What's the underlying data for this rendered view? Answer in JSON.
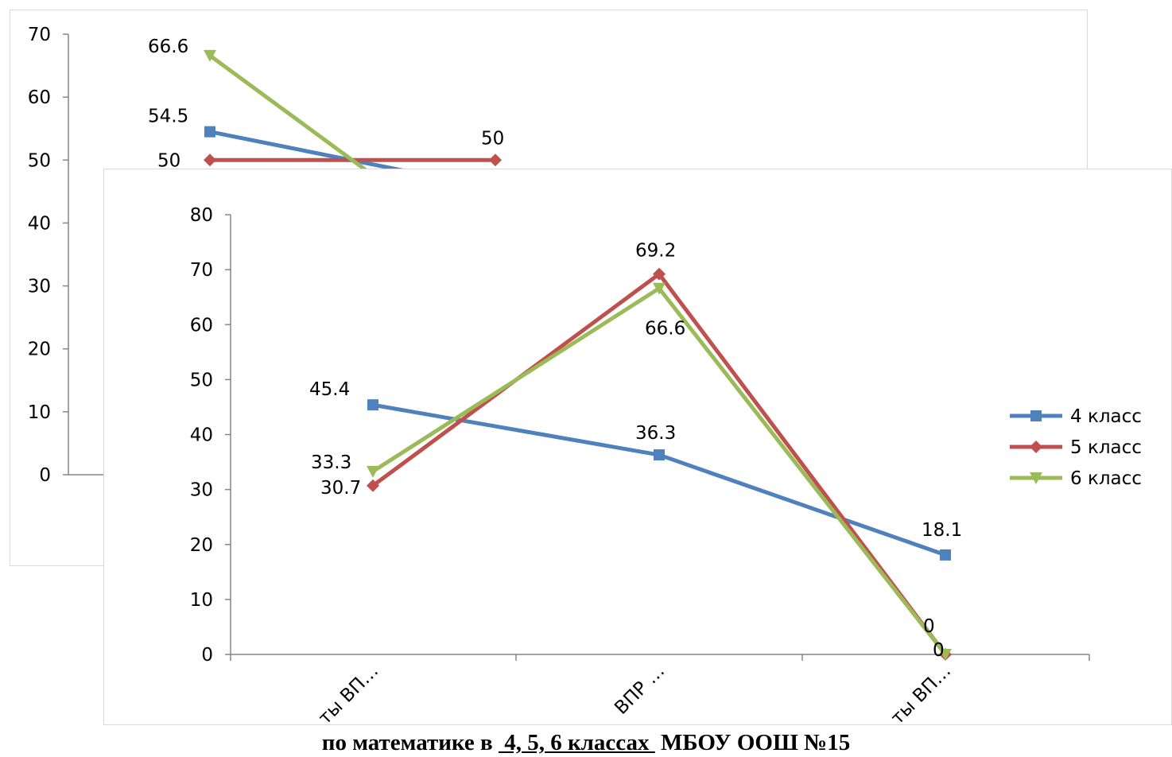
{
  "colors": {
    "s4": "#4f81bd",
    "s5": "#c0504d",
    "s6": "#9bbb59"
  },
  "chart_data": [
    {
      "type": "line",
      "categories": [
        "",
        "",
        ""
      ],
      "ylim": [
        0,
        70
      ],
      "yticks": [
        0,
        10,
        20,
        30,
        40,
        50,
        60,
        70
      ],
      "series": [
        {
          "name": "4 класс",
          "values": [
            54.5,
            45.4,
            null
          ]
        },
        {
          "name": "5 класс",
          "values": [
            50,
            50,
            null
          ]
        },
        {
          "name": "6 класс",
          "values": [
            66.6,
            33.3,
            null
          ]
        }
      ],
      "data_labels": [
        {
          "series": 0,
          "index": 0,
          "text": "54.5"
        },
        {
          "series": 1,
          "index": 0,
          "text": "50"
        },
        {
          "series": 2,
          "index": 0,
          "text": "66.6"
        },
        {
          "series": 1,
          "index": 1,
          "text": "50"
        },
        {
          "series": 0,
          "index": 1,
          "text": "45.4"
        }
      ],
      "legend": "none",
      "grid": false
    },
    {
      "type": "line",
      "categories": [
        "ты ВП…",
        "ВПР …",
        "ты ВП…"
      ],
      "ylim": [
        0,
        80
      ],
      "yticks": [
        0,
        10,
        20,
        30,
        40,
        50,
        60,
        70,
        80
      ],
      "series": [
        {
          "name": "4 класс",
          "values": [
            45.4,
            36.3,
            18.1
          ]
        },
        {
          "name": "5 класс",
          "values": [
            30.7,
            69.2,
            0
          ]
        },
        {
          "name": "6 класс",
          "values": [
            33.3,
            66.6,
            0
          ]
        }
      ],
      "data_labels": [
        {
          "series": 0,
          "index": 0,
          "text": "45.4"
        },
        {
          "series": 0,
          "index": 1,
          "text": "36.3"
        },
        {
          "series": 0,
          "index": 2,
          "text": "18.1"
        },
        {
          "series": 1,
          "index": 0,
          "text": "30.7"
        },
        {
          "series": 1,
          "index": 1,
          "text": "69.2"
        },
        {
          "series": 1,
          "index": 2,
          "text": "0"
        },
        {
          "series": 2,
          "index": 0,
          "text": "33.3"
        },
        {
          "series": 2,
          "index": 1,
          "text": "66.6"
        },
        {
          "series": 2,
          "index": 2,
          "text": "0"
        }
      ],
      "legend": "right",
      "grid": false
    }
  ],
  "caption": {
    "prefix": "по математике в ",
    "underlined": " 4, 5, 6 классах ",
    "suffix": " МБОУ ООШ №15"
  }
}
